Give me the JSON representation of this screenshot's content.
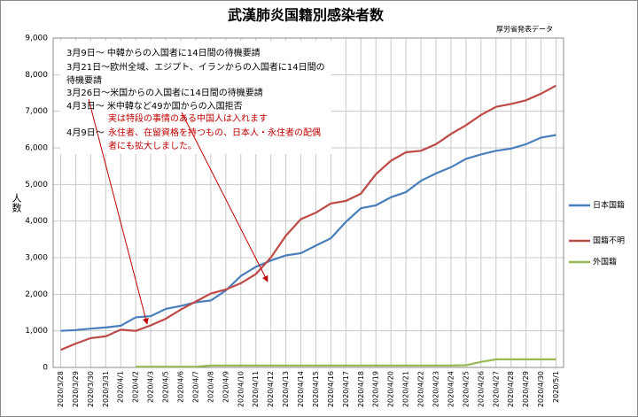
{
  "chart_data": {
    "type": "line",
    "title": "武漢肺炎国籍別感染者数",
    "subtitle": "厚労省発表データ",
    "y_label": "人数",
    "categories": [
      "2020/3/28",
      "2020/3/29",
      "2020/3/30",
      "2020/3/31",
      "2020/4/1",
      "2020/4/2",
      "2020/4/3",
      "2020/4/5",
      "2020/4/6",
      "2020/4/7",
      "2020/4/8",
      "2020/4/9",
      "2020/4/10",
      "2020/4/11",
      "2020/4/12",
      "2020/4/13",
      "2020/4/14",
      "2020/4/15",
      "2020/4/16",
      "2020/4/17",
      "2020/4/18",
      "2020/4/19",
      "2020/4/20",
      "2020/4/21",
      "2020/4/22",
      "2020/4/23",
      "2020/4/24",
      "2020/4/25",
      "2020/4/26",
      "2020/4/27",
      "2020/4/28",
      "2020/4/29",
      "2020/4/30",
      "2020/5/1"
    ],
    "series": [
      {
        "name": "日本国籍",
        "color": "#4a7ebb",
        "values": [
          1000,
          1020,
          1060,
          1090,
          1140,
          1370,
          1400,
          1600,
          1680,
          1780,
          1830,
          2100,
          2500,
          2750,
          2920,
          3060,
          3120,
          3330,
          3530,
          3980,
          4350,
          4430,
          4650,
          4790,
          5100,
          5300,
          5470,
          5700,
          5820,
          5920,
          5980,
          6100,
          6280,
          6350
        ]
      },
      {
        "name": "国籍不明",
        "color": "#be4b48",
        "values": [
          480,
          650,
          800,
          850,
          1030,
          1000,
          1150,
          1330,
          1580,
          1800,
          2020,
          2130,
          2300,
          2550,
          3000,
          3600,
          4050,
          4230,
          4480,
          4550,
          4750,
          5280,
          5650,
          5880,
          5920,
          6100,
          6380,
          6620,
          6900,
          7120,
          7200,
          7300,
          7480,
          7700
        ]
      },
      {
        "name": "外国籍",
        "color": "#98b954",
        "values": [
          null,
          null,
          null,
          null,
          null,
          20,
          20,
          20,
          20,
          20,
          50,
          50,
          50,
          50,
          50,
          50,
          50,
          50,
          50,
          50,
          50,
          50,
          50,
          50,
          50,
          50,
          50,
          60,
          150,
          220,
          220,
          220,
          220,
          220
        ]
      }
    ],
    "ylim": [
      0,
      9000
    ],
    "yticks": [
      0,
      {
        "value": 1000,
        "label": "1,000"
      },
      {
        "value": 2000,
        "label": "2,000"
      },
      {
        "value": 3000,
        "label": "3,000"
      },
      {
        "value": 4000,
        "label": "4,000"
      },
      {
        "value": 5000,
        "label": "5,000"
      },
      {
        "value": 6000,
        "label": "6,000"
      },
      {
        "value": 7000,
        "label": "7,000"
      },
      {
        "value": 8000,
        "label": "8,000"
      },
      {
        "value": 9000,
        "label": "9,000"
      }
    ],
    "grid": true,
    "legend": "right",
    "annotations": [
      {
        "text": "3月9日～ 中韓からの入国者に14日間の待機要請",
        "color": "#000000"
      },
      {
        "text": "3月21日～欧州全域、エジプト、イランからの入国者に14日間の",
        "color": "#000000"
      },
      {
        "text": "待機要請",
        "color": "#000000"
      },
      {
        "text": "3月26日～米国からの入国者に14日間の待機要請",
        "color": "#000000"
      },
      {
        "text": "4月3日～ 米中韓など49か国からの入国拒否",
        "color": "#000000"
      },
      {
        "text": "実は特段の事情のある中国人は入れます",
        "color": "#c00000"
      },
      {
        "text": "4月9日～",
        "color": "#000000"
      },
      {
        "text": "永住者、在留資格を持つもの、日本人・永住者の配偶",
        "color": "#c00000"
      },
      {
        "text": "者にも拡大しました。",
        "color": "#c00000"
      }
    ]
  }
}
